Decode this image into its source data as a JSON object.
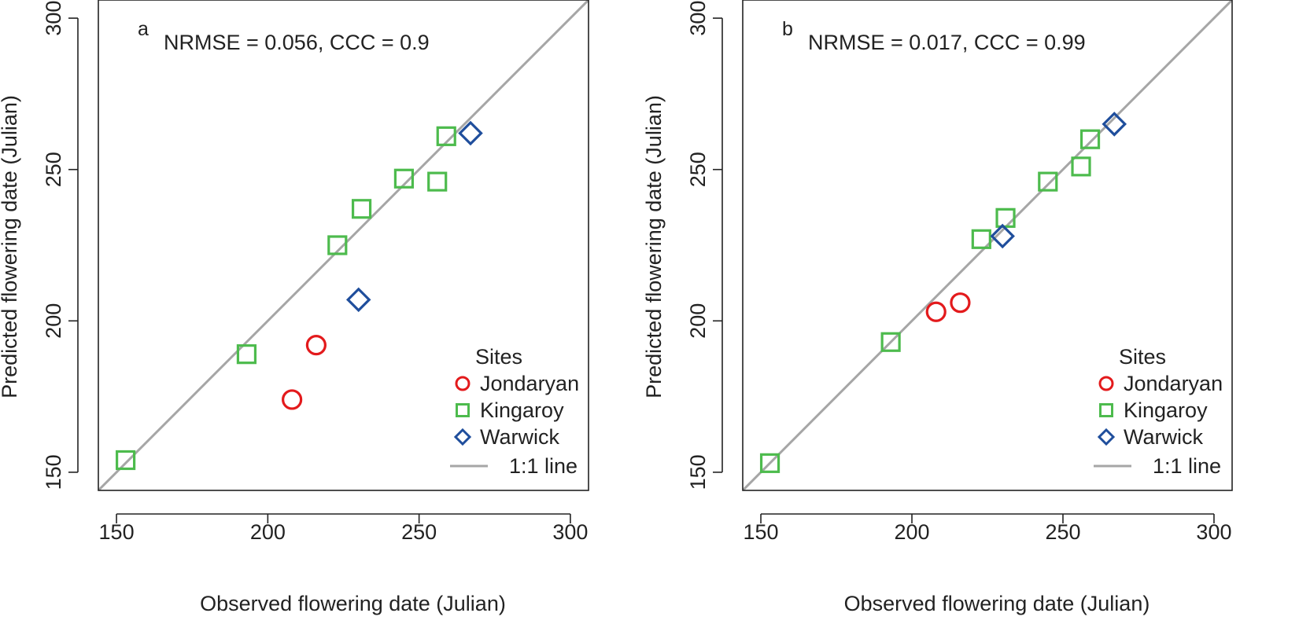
{
  "chart_data": [
    {
      "type": "scatter",
      "panel_label": "a",
      "stats": "NRMSE = 0.056,  CCC = 0.9",
      "xlabel": "Observed flowering date (Julian)",
      "ylabel": "Predicted flowering date (Julian)",
      "xlim": [
        144,
        306
      ],
      "ylim": [
        144,
        306
      ],
      "xticks": [
        150,
        200,
        250,
        300
      ],
      "yticks": [
        150,
        200,
        250,
        300
      ],
      "grid": false,
      "reference_line": {
        "label": "1:1 line",
        "slope": 1,
        "intercept": 0,
        "color": "#a6a6a6"
      },
      "legend": {
        "title": "Sites",
        "placement": "bottom-right"
      },
      "series": [
        {
          "name": "Jondaryan",
          "marker": "circle",
          "color": "#e31a1c",
          "points": [
            [
              208,
              174
            ],
            [
              216,
              192
            ]
          ]
        },
        {
          "name": "Kingaroy",
          "marker": "square",
          "color": "#4dbb4d",
          "points": [
            [
              153,
              154
            ],
            [
              193,
              189
            ],
            [
              223,
              225
            ],
            [
              231,
              237
            ],
            [
              245,
              247
            ],
            [
              256,
              246
            ],
            [
              259,
              261
            ]
          ]
        },
        {
          "name": "Warwick",
          "marker": "diamond",
          "color": "#1f4e9c",
          "points": [
            [
              230,
              207
            ],
            [
              267,
              262
            ]
          ]
        }
      ]
    },
    {
      "type": "scatter",
      "panel_label": "b",
      "stats": "NRMSE = 0.017,  CCC = 0.99",
      "xlabel": "Observed flowering date (Julian)",
      "ylabel": "Predicted flowering date (Julian)",
      "xlim": [
        144,
        306
      ],
      "ylim": [
        144,
        306
      ],
      "xticks": [
        150,
        200,
        250,
        300
      ],
      "yticks": [
        150,
        200,
        250,
        300
      ],
      "grid": false,
      "reference_line": {
        "label": "1:1 line",
        "slope": 1,
        "intercept": 0,
        "color": "#a6a6a6"
      },
      "legend": {
        "title": "Sites",
        "placement": "bottom-right"
      },
      "series": [
        {
          "name": "Jondaryan",
          "marker": "circle",
          "color": "#e31a1c",
          "points": [
            [
              208,
              203
            ],
            [
              216,
              206
            ]
          ]
        },
        {
          "name": "Kingaroy",
          "marker": "square",
          "color": "#4dbb4d",
          "points": [
            [
              153,
              153
            ],
            [
              193,
              193
            ],
            [
              223,
              227
            ],
            [
              231,
              234
            ],
            [
              245,
              246
            ],
            [
              256,
              251
            ],
            [
              259,
              260
            ]
          ]
        },
        {
          "name": "Warwick",
          "marker": "diamond",
          "color": "#1f4e9c",
          "points": [
            [
              230,
              228
            ],
            [
              267,
              265
            ]
          ]
        }
      ]
    }
  ]
}
